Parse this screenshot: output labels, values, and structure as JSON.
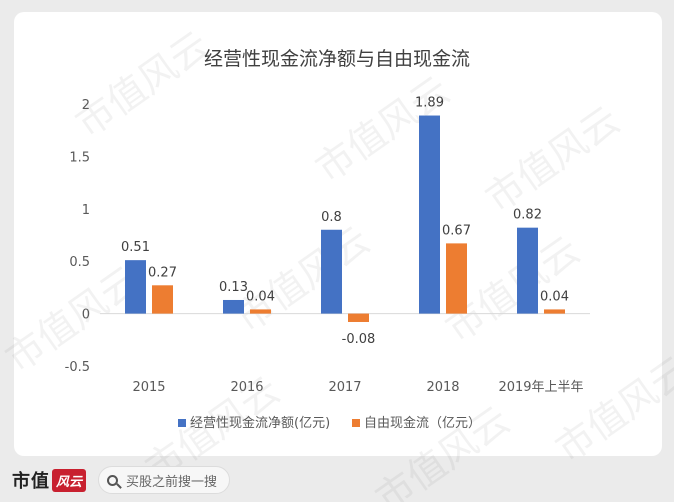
{
  "chart_data": {
    "type": "bar",
    "title": "经营性现金流净额与自由现金流",
    "categories": [
      "2015",
      "2016",
      "2017",
      "2018",
      "2019年上半年"
    ],
    "series": [
      {
        "name": "经营性现金流净额(亿元)",
        "values": [
          0.51,
          0.13,
          0.8,
          1.89,
          0.82
        ],
        "color": "#4472c4"
      },
      {
        "name": "自由现金流（亿元）",
        "values": [
          0.27,
          0.04,
          -0.08,
          0.67,
          0.04
        ],
        "color": "#ed7d31"
      }
    ],
    "ylim": [
      -0.5,
      2
    ],
    "yticks": [
      "-0.5",
      "0",
      "0.5",
      "1",
      "1.5",
      "2"
    ],
    "data_labels": [
      [
        "0.51",
        "0.13",
        "0.8",
        "1.89",
        "0.82"
      ],
      [
        "0.27",
        "0.04",
        "-0.08",
        "0.67",
        "0.04"
      ]
    ],
    "grid": false,
    "legend": "bottom-center"
  },
  "watermark": "市值风云",
  "footer": {
    "brand": "市值",
    "brand_mark": "风云",
    "search_placeholder": "买股之前搜一搜",
    "search_icon": "search-icon"
  }
}
